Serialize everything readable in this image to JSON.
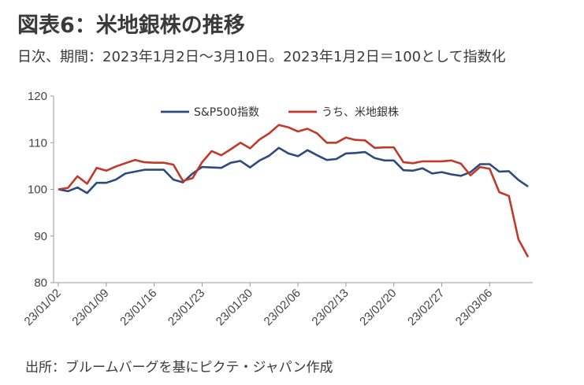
{
  "header": {
    "title": "図表6：米地銀株の推移",
    "subtitle": "日次、期間：2023年1月2日～3月10日。2023年1月2日＝100として指数化"
  },
  "footer": {
    "source": "出所：ブルームバーグを基にピクテ・ジャパン作成"
  },
  "chart_data": {
    "type": "line",
    "title": "",
    "xlabel": "",
    "ylabel": "",
    "ylim": [
      80,
      120
    ],
    "yticks": [
      80,
      90,
      100,
      110,
      120
    ],
    "x_tick_labels": [
      "23/01/02",
      "23/01/09",
      "23/01/16",
      "23/01/23",
      "23/01/30",
      "23/02/06",
      "23/02/13",
      "23/02/20",
      "23/02/27",
      "23/03/06"
    ],
    "grid": false,
    "legend_position": "top-center",
    "x": [
      "2023-01-02",
      "2023-01-03",
      "2023-01-04",
      "2023-01-05",
      "2023-01-06",
      "2023-01-09",
      "2023-01-10",
      "2023-01-11",
      "2023-01-12",
      "2023-01-13",
      "2023-01-16",
      "2023-01-17",
      "2023-01-18",
      "2023-01-19",
      "2023-01-20",
      "2023-01-23",
      "2023-01-24",
      "2023-01-25",
      "2023-01-26",
      "2023-01-27",
      "2023-01-30",
      "2023-01-31",
      "2023-02-01",
      "2023-02-02",
      "2023-02-03",
      "2023-02-06",
      "2023-02-07",
      "2023-02-08",
      "2023-02-09",
      "2023-02-10",
      "2023-02-13",
      "2023-02-14",
      "2023-02-15",
      "2023-02-16",
      "2023-02-17",
      "2023-02-20",
      "2023-02-21",
      "2023-02-22",
      "2023-02-23",
      "2023-02-24",
      "2023-02-27",
      "2023-02-28",
      "2023-03-01",
      "2023-03-02",
      "2023-03-03",
      "2023-03-06",
      "2023-03-07",
      "2023-03-08",
      "2023-03-09",
      "2023-03-10"
    ],
    "series": [
      {
        "name": "S&P500指数",
        "color": "#2e4a7d",
        "values": [
          100.0,
          99.6,
          100.4,
          99.2,
          101.4,
          101.4,
          102.1,
          103.4,
          103.8,
          104.2,
          104.2,
          104.2,
          102.1,
          101.5,
          103.4,
          104.8,
          104.7,
          104.6,
          105.7,
          106.1,
          104.7,
          106.2,
          107.2,
          108.9,
          107.7,
          107.1,
          108.4,
          107.3,
          106.3,
          106.5,
          107.7,
          107.8,
          108.0,
          106.7,
          106.2,
          106.2,
          104.1,
          104.0,
          104.5,
          103.4,
          103.7,
          103.2,
          102.9,
          103.7,
          105.4,
          105.4,
          103.8,
          103.9,
          102.0,
          100.6
        ]
      },
      {
        "name": "うち、米地銀株",
        "color": "#c0392b",
        "values": [
          100.0,
          100.3,
          102.8,
          101.2,
          104.6,
          104.0,
          104.9,
          105.6,
          106.3,
          105.8,
          105.7,
          105.7,
          105.3,
          101.8,
          102.4,
          105.8,
          108.2,
          107.3,
          108.6,
          110.0,
          108.8,
          110.7,
          112.0,
          113.8,
          113.3,
          112.4,
          113.0,
          112.0,
          110.0,
          110.0,
          111.1,
          110.6,
          110.5,
          108.9,
          109.0,
          109.0,
          105.8,
          105.6,
          106.0,
          106.0,
          106.0,
          106.2,
          105.5,
          103.0,
          104.8,
          104.4,
          99.4,
          98.6,
          89.3,
          85.5
        ]
      }
    ]
  }
}
